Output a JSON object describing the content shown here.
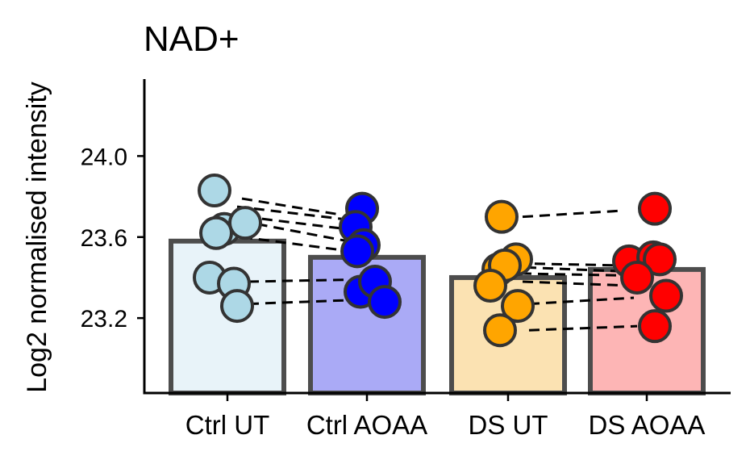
{
  "chart_data": {
    "type": "bar",
    "title": "NAD+",
    "xlabel": "",
    "ylabel": "Log2 normalised intensity",
    "ylim": [
      22.83,
      24.38
    ],
    "yticks": [
      23.2,
      23.6,
      24.0
    ],
    "ytick_labels": [
      "23.2",
      "23.6",
      "24.0"
    ],
    "grid": false,
    "legend": "none",
    "categories": [
      "Ctrl UT",
      "Ctrl AOAA",
      "DS UT",
      "DS AOAA"
    ],
    "values": [
      23.58,
      23.5,
      23.4,
      23.44
    ],
    "bar_fill_colors": [
      "#e8f3f9",
      "#aaaaf6",
      "#fbe2b2",
      "#fdb5b5"
    ],
    "point_colors": [
      "#add8e6",
      "#0000ff",
      "#ffa500",
      "#ff0000"
    ],
    "points": [
      [
        23.83,
        23.64,
        23.67,
        23.62,
        23.4,
        23.37,
        23.26
      ],
      [
        23.74,
        23.65,
        23.56,
        23.53,
        23.33,
        23.38,
        23.28
      ],
      [
        23.7,
        23.49,
        23.44,
        23.46,
        23.36,
        23.26,
        23.14
      ],
      [
        23.74,
        23.48,
        23.5,
        23.49,
        23.4,
        23.31,
        23.16
      ]
    ],
    "pairs": [
      {
        "from": 0,
        "to": 1,
        "values": [
          [
            23.79,
            23.71
          ],
          [
            23.75,
            23.69
          ],
          [
            23.7,
            23.64
          ],
          [
            23.68,
            23.58
          ],
          [
            23.6,
            23.53
          ],
          [
            23.38,
            23.39
          ],
          [
            23.27,
            23.29
          ]
        ]
      },
      {
        "from": 2,
        "to": 3,
        "values": [
          [
            23.7,
            23.73
          ],
          [
            23.47,
            23.46
          ],
          [
            23.45,
            23.43
          ],
          [
            23.42,
            23.41
          ],
          [
            23.38,
            23.36
          ],
          [
            23.27,
            23.3
          ],
          [
            23.14,
            23.16
          ]
        ]
      }
    ]
  }
}
